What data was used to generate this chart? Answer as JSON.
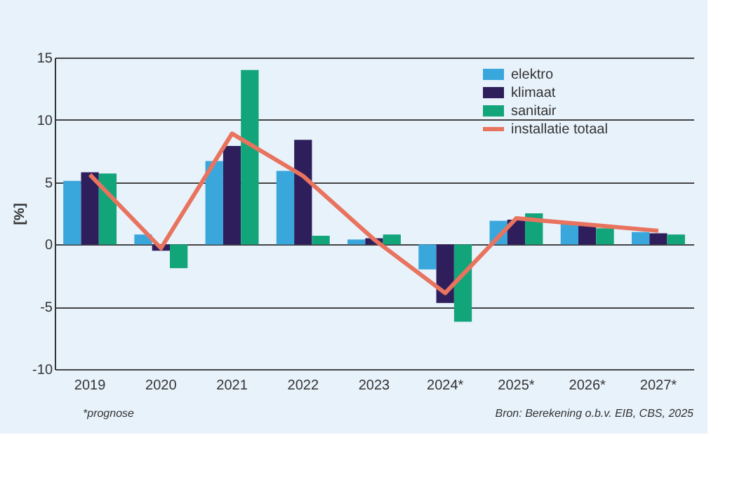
{
  "chart_data": {
    "type": "bar",
    "ylabel": "[%]",
    "categories": [
      "2019",
      "2020",
      "2021",
      "2022",
      "2023",
      "2024*",
      "2025*",
      "2026*",
      "2027*"
    ],
    "series": [
      {
        "name": "elektro",
        "color": "#3aa7dc",
        "values": [
          5.1,
          0.8,
          6.7,
          5.9,
          0.4,
          -2.0,
          1.9,
          1.7,
          1.0
        ]
      },
      {
        "name": "klimaat",
        "color": "#2e1f5c",
        "values": [
          5.8,
          -0.5,
          7.9,
          8.4,
          0.5,
          -4.7,
          2.0,
          1.6,
          0.9
        ]
      },
      {
        "name": "sanitair",
        "color": "#12a57a",
        "values": [
          5.7,
          -1.9,
          14.0,
          0.7,
          0.8,
          -6.2,
          2.5,
          1.3,
          0.8
        ]
      },
      {
        "name": "installatie totaal",
        "color": "#e8735e",
        "type": "line",
        "values": [
          5.6,
          -0.3,
          8.9,
          5.5,
          0.4,
          -3.9,
          2.1,
          1.6,
          1.1
        ]
      }
    ],
    "ylim": [
      -10,
      15
    ],
    "yticks": [
      -10,
      -5,
      0,
      5,
      10,
      15
    ],
    "grid": "y",
    "legend": "top right",
    "annotations": [
      "*prognose",
      "Bron: Berekening o.b.v. EIB, CBS, 2025"
    ]
  }
}
